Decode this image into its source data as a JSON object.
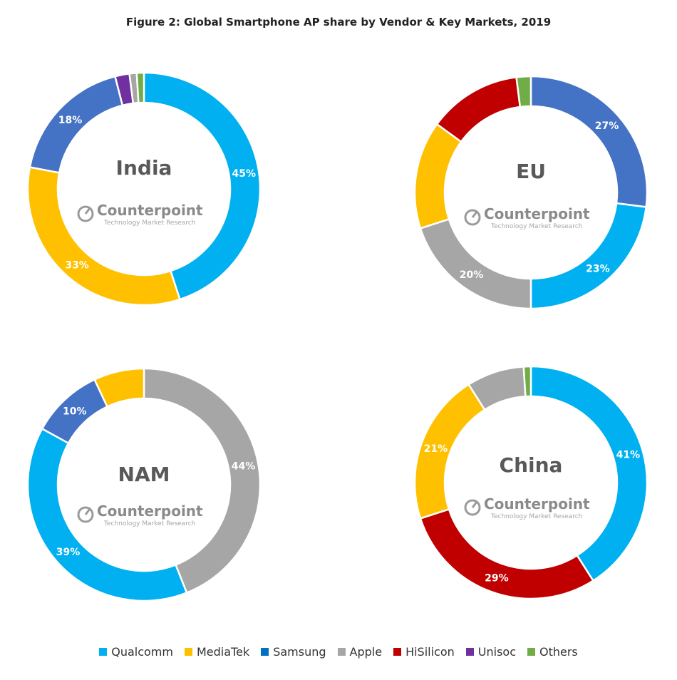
{
  "title": "Figure 2: Global Smartphone AP share by Vendor & Key Markets, 2019",
  "watermark": {
    "brand": "Counterpoint",
    "tagline": "Technology Market Research"
  },
  "legend": [
    {
      "name": "Qualcomm",
      "color": "#00b0f0"
    },
    {
      "name": "MediaTek",
      "color": "#ffc000"
    },
    {
      "name": "Samsung",
      "color": "#0070c0"
    },
    {
      "name": "Apple",
      "color": "#a6a6a6"
    },
    {
      "name": "HiSilicon",
      "color": "#c00000"
    },
    {
      "name": "Unisoc",
      "color": "#7030a0"
    },
    {
      "name": "Others",
      "color": "#70ad47"
    }
  ],
  "chart_data": [
    {
      "type": "pie",
      "donut": true,
      "title": "India",
      "slices": [
        {
          "name": "Qualcomm",
          "value": 45,
          "label": "45%",
          "color": "#00b0f0"
        },
        {
          "name": "MediaTek",
          "value": 33,
          "label": "33%",
          "color": "#ffc000"
        },
        {
          "name": "Samsung",
          "value": 18,
          "label": "18%",
          "color": "#4472c4"
        },
        {
          "name": "Unisoc",
          "value": 2,
          "label": "",
          "color": "#7030a0"
        },
        {
          "name": "Apple",
          "value": 1,
          "label": "",
          "color": "#a6a6a6"
        },
        {
          "name": "Others",
          "value": 1,
          "label": "",
          "color": "#70ad47"
        }
      ]
    },
    {
      "type": "pie",
      "donut": true,
      "title": "EU",
      "slices": [
        {
          "name": "Samsung",
          "value": 27,
          "label": "27%",
          "color": "#4472c4"
        },
        {
          "name": "Qualcomm",
          "value": 23,
          "label": "23%",
          "color": "#00b0f0"
        },
        {
          "name": "Apple",
          "value": 20,
          "label": "20%",
          "color": "#a6a6a6"
        },
        {
          "name": "MediaTek",
          "value": 15,
          "label": "",
          "color": "#ffc000"
        },
        {
          "name": "HiSilicon",
          "value": 13,
          "label": "",
          "color": "#c00000"
        },
        {
          "name": "Others",
          "value": 2,
          "label": "",
          "color": "#70ad47"
        }
      ]
    },
    {
      "type": "pie",
      "donut": true,
      "title": "NAM",
      "slices": [
        {
          "name": "Apple",
          "value": 44,
          "label": "44%",
          "color": "#a6a6a6"
        },
        {
          "name": "Qualcomm",
          "value": 39,
          "label": "39%",
          "color": "#00b0f0"
        },
        {
          "name": "Samsung",
          "value": 10,
          "label": "10%",
          "color": "#4472c4"
        },
        {
          "name": "MediaTek",
          "value": 7,
          "label": "",
          "color": "#ffc000"
        }
      ]
    },
    {
      "type": "pie",
      "donut": true,
      "title": "China",
      "slices": [
        {
          "name": "Qualcomm",
          "value": 41,
          "label": "41%",
          "color": "#00b0f0"
        },
        {
          "name": "HiSilicon",
          "value": 29,
          "label": "29%",
          "color": "#c00000"
        },
        {
          "name": "MediaTek",
          "value": 21,
          "label": "21%",
          "color": "#ffc000"
        },
        {
          "name": "Apple",
          "value": 8,
          "label": "",
          "color": "#a6a6a6"
        },
        {
          "name": "Others",
          "value": 1,
          "label": "",
          "color": "#70ad47"
        }
      ]
    }
  ]
}
